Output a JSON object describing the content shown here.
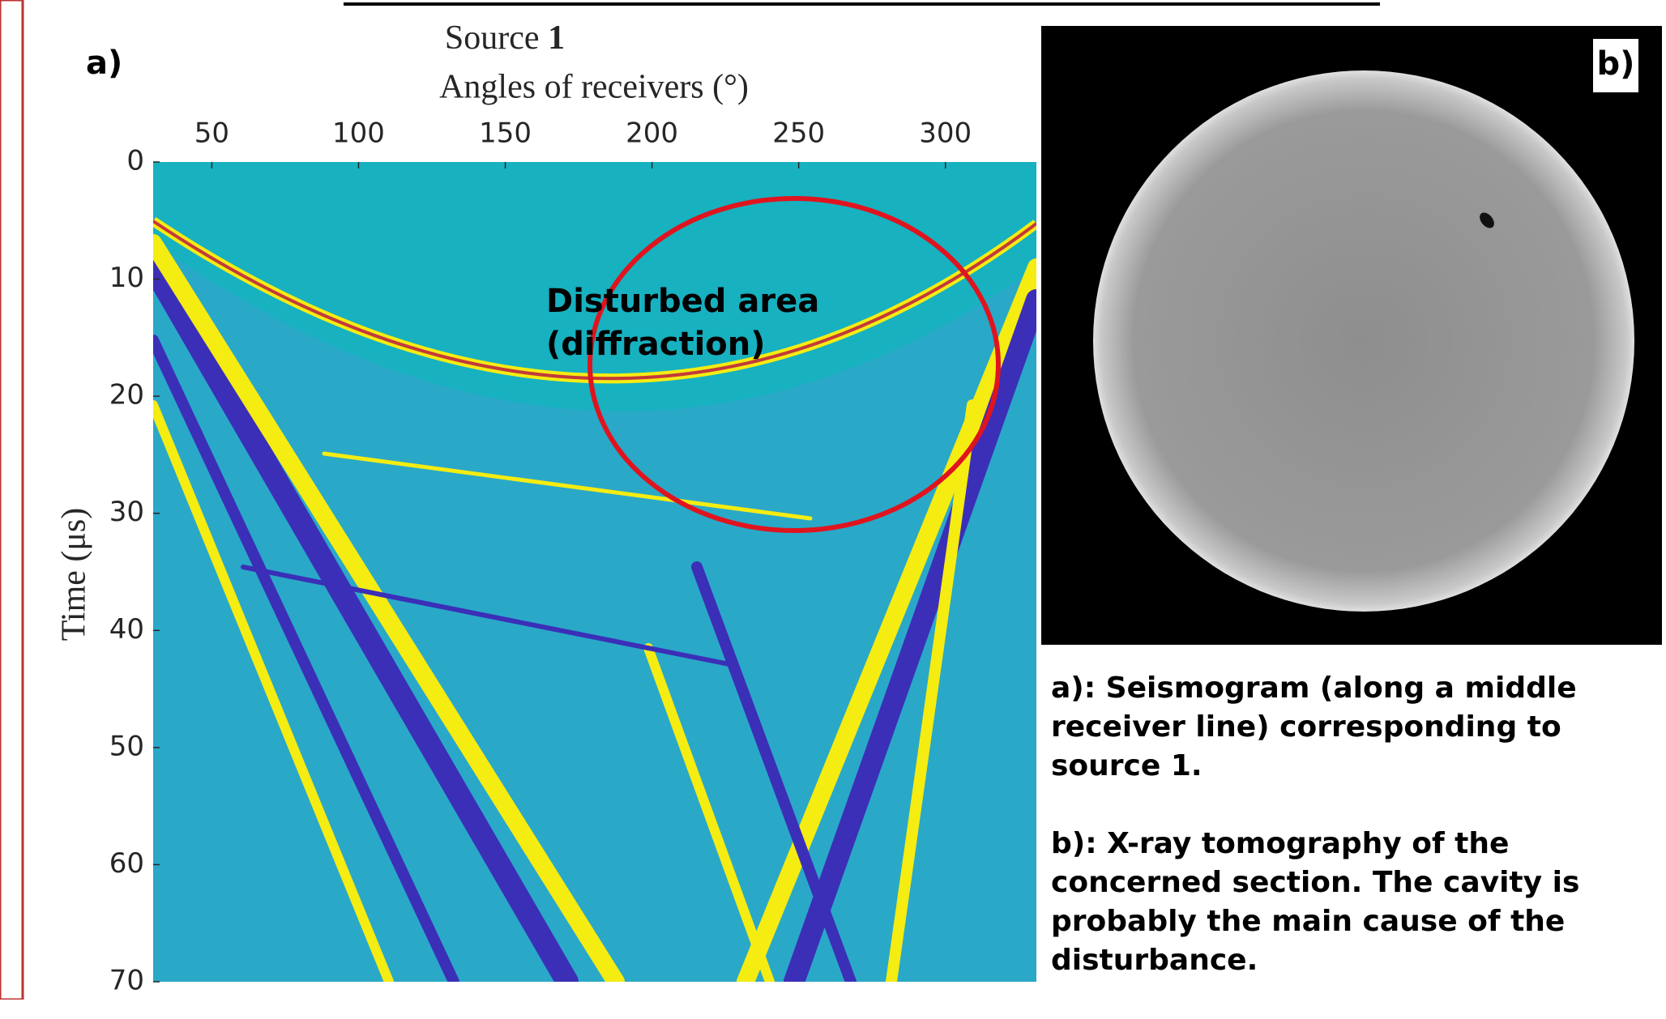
{
  "chart_data": {
    "type": "heatmap",
    "panel_label": "a)",
    "title": "Source",
    "title_bold": "1",
    "xlabel": "Angles of receivers (°)",
    "ylabel": "Time (μs)",
    "xlim": [
      30,
      331
    ],
    "ylim": [
      0,
      70
    ],
    "xticks": [
      50,
      100,
      150,
      200,
      250,
      300
    ],
    "yticks": [
      0,
      10,
      20,
      30,
      40,
      50,
      60,
      70
    ],
    "annotation": [
      "Disturbed area",
      "(diffraction)"
    ]
  },
  "panel_b": {
    "label": "b)"
  },
  "captions": [
    "a): Seismogram (along a middle receiver line) corresponding to source 1.",
    "b): X-ray tomography of the concerned section. The cavity is probably the main cause of the disturbance."
  ]
}
